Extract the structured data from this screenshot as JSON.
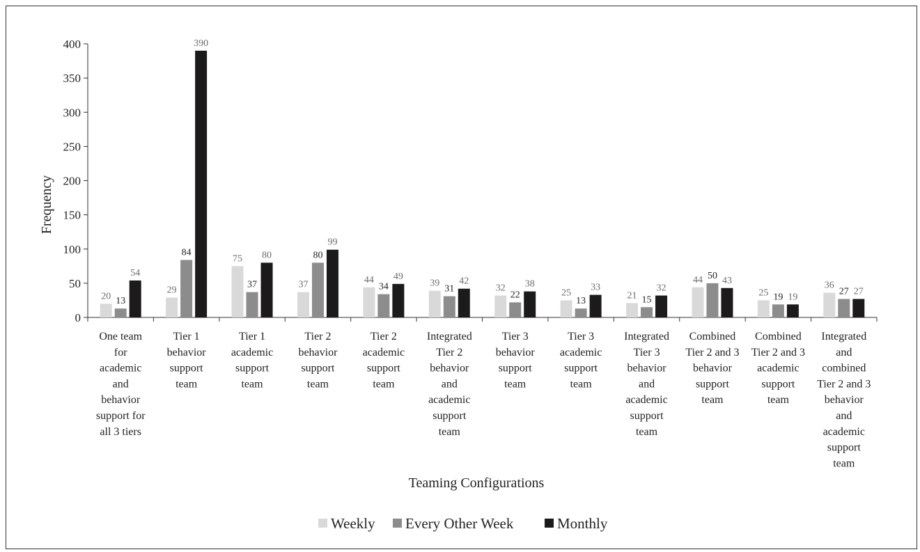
{
  "chart_data": {
    "type": "bar",
    "title": "",
    "xlabel": "Teaming Configurations",
    "ylabel": "Frequency",
    "ylim": [
      0,
      400
    ],
    "yticks": [
      0,
      50,
      100,
      150,
      200,
      250,
      300,
      350,
      400
    ],
    "grid": false,
    "legend_position": "bottom",
    "categories": [
      [
        "One team",
        "for",
        "academic",
        "and",
        "behavior",
        "support for",
        "all 3 tiers"
      ],
      [
        "Tier 1",
        "behavior",
        "support",
        "team"
      ],
      [
        "Tier 1",
        "academic",
        "support",
        "team"
      ],
      [
        "Tier 2",
        "behavior",
        "support",
        "team"
      ],
      [
        "Tier 2",
        "academic",
        "support",
        "team"
      ],
      [
        "Integrated",
        "Tier 2",
        "behavior",
        "and",
        "academic",
        "support",
        "team"
      ],
      [
        "Tier 3",
        "behavior",
        "support",
        "team"
      ],
      [
        "Tier 3",
        "academic",
        "support",
        "team"
      ],
      [
        "Integrated",
        "Tier 3",
        "behavior",
        "and",
        "academic",
        "support",
        "team"
      ],
      [
        "Combined",
        "Tier 2 and 3",
        "behavior",
        "support",
        "team"
      ],
      [
        "Combined",
        "Tier 2 and 3",
        "academic",
        "support",
        "team"
      ],
      [
        "Integrated",
        "and",
        "combined",
        "Tier 2 and 3",
        "behavior",
        "and",
        "academic",
        "support",
        "team"
      ]
    ],
    "series": [
      {
        "name": "Weekly",
        "color": "#d9d9d9",
        "label_color": "#6b6b6b",
        "values": [
          20,
          29,
          75,
          37,
          44,
          39,
          32,
          25,
          21,
          44,
          25,
          36
        ]
      },
      {
        "name": "Every Other Week",
        "color": "#8c8c8c",
        "label_color": "#222222",
        "values": [
          13,
          84,
          37,
          80,
          34,
          31,
          22,
          13,
          15,
          50,
          19,
          27
        ]
      },
      {
        "name": "Monthly",
        "color": "#1c1a1a",
        "label_color": "#6b6b6b",
        "values": [
          54,
          390,
          80,
          99,
          49,
          42,
          38,
          33,
          32,
          43,
          19,
          27
        ]
      }
    ]
  }
}
